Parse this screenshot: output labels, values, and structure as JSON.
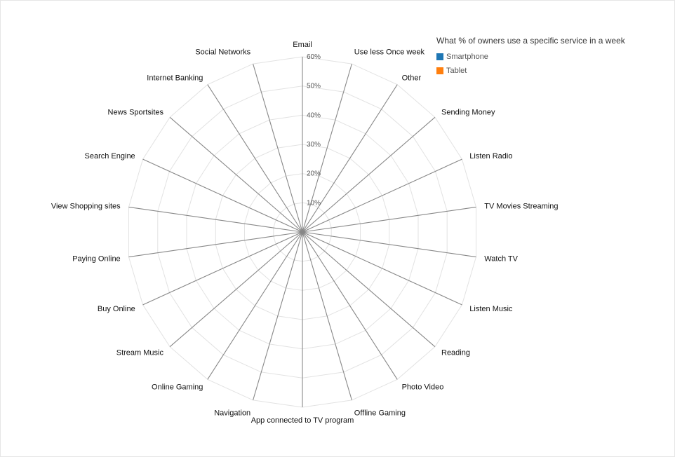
{
  "chart_data": {
    "type": "radar",
    "title": "What % of owners use a specific service in a week",
    "axes": [
      "Email",
      "Use less Once week",
      "Other",
      "Sending Money",
      "Listen Radio",
      "TV Movies Streaming",
      "Watch TV",
      "Listen Music",
      "Reading",
      "Photo Video",
      "Offline Gaming",
      "App connected to TV program",
      "Navigation",
      "Online Gaming",
      "Stream Music",
      "Buy Online",
      "Paying Online",
      "View Shopping sites",
      "Search Engine",
      "News Sportsites",
      "Internet Banking",
      "Social Networks"
    ],
    "ticks": [
      "10%",
      "20%",
      "30%",
      "40%",
      "50%",
      "60%"
    ],
    "range": [
      0,
      60
    ],
    "grid": true,
    "legend_position": "top-right",
    "series": [
      {
        "name": "Smartphone",
        "color": "#1f77b4",
        "values": []
      },
      {
        "name": "Tablet",
        "color": "#ff7f0e",
        "values": []
      }
    ]
  }
}
